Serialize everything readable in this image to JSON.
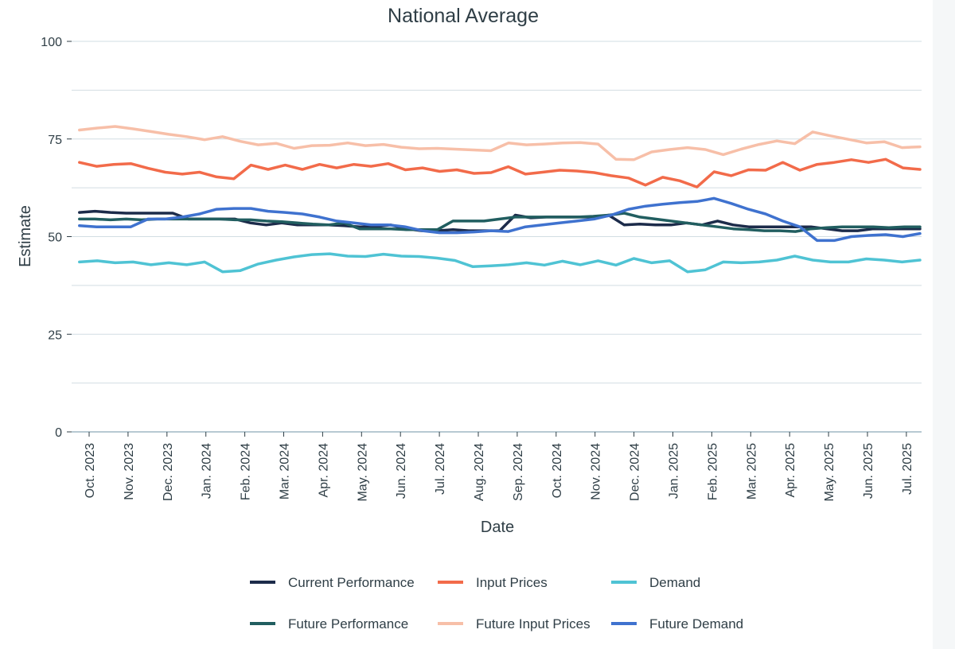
{
  "chart_data": {
    "type": "line",
    "title": "National Average",
    "xlabel": "Date",
    "ylabel": "Estimate",
    "ylim": [
      0,
      100
    ],
    "yticks": [
      0,
      25,
      50,
      75,
      100
    ],
    "grid": true,
    "legend_position": "bottom",
    "x_tick_labels": [
      "Oct. 2023",
      "Nov. 2023",
      "Dec. 2023",
      "Jan. 2024",
      "Feb. 2024",
      "Mar. 2024",
      "Apr. 2024",
      "May. 2024",
      "Jun. 2024",
      "Jul. 2024",
      "Aug. 2024",
      "Sep. 2024",
      "Oct. 2024",
      "Nov. 2024",
      "Dec. 2024",
      "Jan. 2025",
      "Feb. 2025",
      "Mar. 2025",
      "Apr. 2025",
      "May. 2025",
      "Jun. 2025",
      "Jul. 2025"
    ],
    "x_start_month_index": -0.25,
    "x_step_months": 0.5,
    "series": [
      {
        "name": "Current Performance",
        "color": "#1c2b4a",
        "values": [
          56.2,
          56.5,
          56.2,
          56.0,
          56.0,
          56.0,
          56.0,
          54.5,
          54.5,
          54.5,
          54.5,
          53.5,
          53.0,
          53.5,
          53.0,
          53.0,
          53.0,
          52.8,
          52.5,
          52.5,
          53.0,
          52.0,
          51.5,
          51.5,
          51.8,
          51.5,
          51.5,
          51.5,
          55.5,
          54.8,
          55.0,
          55.0,
          55.0,
          55.0,
          55.5,
          53.0,
          53.2,
          53.0,
          53.0,
          53.5,
          53.0,
          54.0,
          53.0,
          52.5,
          52.5,
          52.5,
          52.5,
          52.5,
          52.0,
          51.5,
          51.5,
          52.0,
          52.0,
          52.0,
          52.0
        ]
      },
      {
        "name": "Input Prices",
        "color": "#f26b4a",
        "values": [
          69.0,
          68.0,
          68.5,
          68.7,
          67.5,
          66.5,
          66.0,
          66.5,
          65.3,
          64.8,
          68.3,
          67.2,
          68.3,
          67.2,
          68.5,
          67.6,
          68.5,
          68.0,
          68.7,
          67.1,
          67.6,
          66.7,
          67.1,
          66.2,
          66.4,
          67.9,
          66.0,
          66.5,
          67.0,
          66.8,
          66.4,
          65.6,
          65.0,
          63.2,
          65.2,
          64.3,
          62.7,
          66.6,
          65.6,
          67.1,
          67.0,
          69.0,
          67.0,
          68.5,
          69.0,
          69.7,
          69.0,
          69.8,
          67.6,
          67.2
        ]
      },
      {
        "name": "Demand",
        "color": "#4fc3d4",
        "values": [
          43.5,
          43.8,
          43.3,
          43.5,
          42.8,
          43.3,
          42.8,
          43.5,
          41.0,
          41.3,
          43.0,
          44.0,
          44.8,
          45.4,
          45.6,
          45.0,
          44.9,
          45.5,
          45.0,
          44.9,
          44.5,
          43.9,
          42.3,
          42.5,
          42.8,
          43.3,
          42.7,
          43.7,
          42.8,
          43.8,
          42.7,
          44.4,
          43.3,
          43.8,
          41.0,
          41.5,
          43.5,
          43.3,
          43.5,
          44.0,
          45.0,
          44.0,
          43.5,
          43.5,
          44.3,
          44.0,
          43.5,
          44.0
        ]
      },
      {
        "name": "Future Performance",
        "color": "#215e60",
        "values": [
          54.5,
          54.5,
          54.3,
          54.5,
          54.3,
          54.5,
          54.5,
          54.5,
          54.5,
          54.5,
          54.3,
          54.3,
          54.0,
          53.8,
          53.5,
          53.2,
          53.0,
          53.5,
          52.0,
          52.0,
          52.0,
          51.8,
          51.8,
          51.8,
          54.0,
          54.0,
          54.0,
          54.5,
          55.0,
          55.0,
          55.0,
          55.0,
          55.0,
          55.2,
          55.5,
          56.0,
          55.0,
          54.5,
          54.0,
          53.5,
          53.0,
          52.5,
          52.0,
          51.8,
          51.5,
          51.5,
          51.3,
          52.0,
          52.3,
          52.5,
          52.5,
          52.5,
          52.3,
          52.5,
          52.5
        ]
      },
      {
        "name": "Future Input Prices",
        "color": "#f7bfa8",
        "values": [
          77.3,
          77.8,
          78.2,
          77.6,
          76.9,
          76.2,
          75.6,
          74.8,
          75.6,
          74.4,
          73.5,
          73.9,
          72.6,
          73.3,
          73.4,
          74.0,
          73.3,
          73.6,
          72.9,
          72.5,
          72.6,
          72.4,
          72.2,
          72.0,
          74.0,
          73.5,
          73.7,
          74.0,
          74.1,
          73.7,
          69.8,
          69.7,
          71.7,
          72.3,
          72.8,
          72.3,
          71.0,
          72.4,
          73.6,
          74.5,
          73.8,
          76.8,
          75.8,
          74.9,
          74.0,
          74.3,
          72.8,
          73.0
        ]
      },
      {
        "name": "Future Demand",
        "color": "#3f72cf",
        "values": [
          52.8,
          52.5,
          52.5,
          52.5,
          54.5,
          54.5,
          55.0,
          55.8,
          57.0,
          57.2,
          57.2,
          56.5,
          56.2,
          55.8,
          55.0,
          54.0,
          53.5,
          53.0,
          53.0,
          52.5,
          51.5,
          51.0,
          51.0,
          51.2,
          51.5,
          51.3,
          52.5,
          53.0,
          53.5,
          54.0,
          54.5,
          55.5,
          57.0,
          57.8,
          58.3,
          58.7,
          59.0,
          59.8,
          58.5,
          57.0,
          55.8,
          54.0,
          52.5,
          49.0,
          49.0,
          50.0,
          50.3,
          50.5,
          50.0,
          50.8
        ]
      }
    ]
  }
}
